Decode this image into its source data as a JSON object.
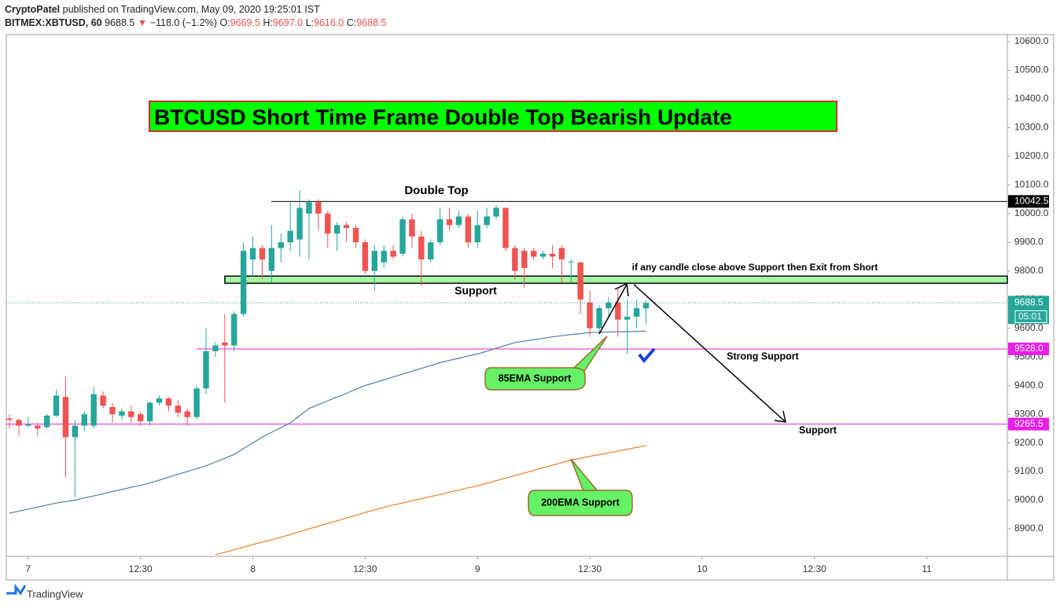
{
  "header": {
    "line1_author": "CryptoPatel",
    "line1_rest": "published on TradingView.com, May 09, 2020 19:25:01 IST",
    "symbol": "BITMEX:XBTUSD, 60",
    "last": "9688.5",
    "arrow": "▼",
    "change": "−118.0 (−1.2%)",
    "o_label": "O:",
    "o": "9669.5",
    "h_label": "H:",
    "h": "9697.0",
    "l_label": "L:",
    "l": "9616.0",
    "c_label": "C:",
    "c": "9688.5"
  },
  "footer": "TradingView",
  "chart_data": {
    "type": "candlestick",
    "up_color": "#26a69a",
    "down_color": "#ef5350",
    "xlim": [
      -0.34,
      106.6
    ],
    "ylim": [
      8804,
      10622
    ],
    "xticks": [
      {
        "value": 2,
        "label": "7"
      },
      {
        "value": 14,
        "label": "12:30"
      },
      {
        "value": 26,
        "label": "8"
      },
      {
        "value": 38,
        "label": "12:30"
      },
      {
        "value": 50,
        "label": "9"
      },
      {
        "value": 62,
        "label": "12:30"
      },
      {
        "value": 74,
        "label": "10"
      },
      {
        "value": 86,
        "label": "12:30"
      },
      {
        "value": 98,
        "label": "11"
      }
    ],
    "yticks": [
      {
        "value": 8900,
        "label": "8900.0"
      },
      {
        "value": 9000,
        "label": "9000.0"
      },
      {
        "value": 9100,
        "label": "9100.0"
      },
      {
        "value": 9200,
        "label": "9200.0"
      },
      {
        "value": 9300,
        "label": "9300.0"
      },
      {
        "value": 9400,
        "label": "9400.0"
      },
      {
        "value": 9500,
        "label": "9500.0"
      },
      {
        "value": 9600,
        "label": "9600.0"
      },
      {
        "value": 9700,
        "label": "9700.0"
      },
      {
        "value": 9800,
        "label": "9800.0"
      },
      {
        "value": 9900,
        "label": "9900.0"
      },
      {
        "value": 10000,
        "label": "10000.0"
      },
      {
        "value": 10100,
        "label": "10100.0"
      },
      {
        "value": 10200,
        "label": "10200.0"
      },
      {
        "value": 10300,
        "label": "10300.0"
      },
      {
        "value": 10400,
        "label": "10400.0"
      },
      {
        "value": 10500,
        "label": "10500.0"
      },
      {
        "value": 10600,
        "label": "10600.0"
      }
    ],
    "candles": [
      {
        "open": 9285,
        "high": 9300,
        "low": 9250,
        "close": 9280
      },
      {
        "open": 9280,
        "high": 9285,
        "low": 9225,
        "close": 9260
      },
      {
        "open": 9260,
        "high": 9290,
        "low": 9255,
        "close": 9265
      },
      {
        "open": 9260,
        "high": 9270,
        "low": 9225,
        "close": 9250
      },
      {
        "open": 9255,
        "high": 9300,
        "low": 9250,
        "close": 9295
      },
      {
        "open": 9295,
        "high": 9385,
        "low": 9290,
        "close": 9365
      },
      {
        "open": 9360,
        "high": 9430,
        "low": 9080,
        "close": 9220
      },
      {
        "open": 9220,
        "high": 9280,
        "low": 9010,
        "close": 9260
      },
      {
        "open": 9260,
        "high": 9310,
        "low": 9240,
        "close": 9300
      },
      {
        "open": 9260,
        "high": 9395,
        "low": 9250,
        "close": 9370
      },
      {
        "open": 9365,
        "high": 9380,
        "low": 9320,
        "close": 9330
      },
      {
        "open": 9325,
        "high": 9340,
        "low": 9270,
        "close": 9300
      },
      {
        "open": 9295,
        "high": 9320,
        "low": 9280,
        "close": 9310
      },
      {
        "open": 9310,
        "high": 9330,
        "low": 9270,
        "close": 9290
      },
      {
        "open": 9300,
        "high": 9310,
        "low": 9260,
        "close": 9275
      },
      {
        "open": 9275,
        "high": 9345,
        "low": 9260,
        "close": 9340
      },
      {
        "open": 9340,
        "high": 9365,
        "low": 9330,
        "close": 9355
      },
      {
        "open": 9355,
        "high": 9360,
        "low": 9310,
        "close": 9330
      },
      {
        "open": 9330,
        "high": 9350,
        "low": 9290,
        "close": 9305
      },
      {
        "open": 9310,
        "high": 9320,
        "low": 9260,
        "close": 9290
      },
      {
        "open": 9290,
        "high": 9400,
        "low": 9280,
        "close": 9390
      },
      {
        "open": 9390,
        "high": 9600,
        "low": 9370,
        "close": 9520
      },
      {
        "open": 9520,
        "high": 9550,
        "low": 9500,
        "close": 9540
      },
      {
        "open": 9550,
        "high": 9650,
        "low": 9340,
        "close": 9540
      },
      {
        "open": 9540,
        "high": 9660,
        "low": 9520,
        "close": 9650
      },
      {
        "open": 9650,
        "high": 9900,
        "low": 9640,
        "close": 9870
      },
      {
        "open": 9840,
        "high": 9920,
        "low": 9780,
        "close": 9880
      },
      {
        "open": 9880,
        "high": 9890,
        "low": 9770,
        "close": 9840
      },
      {
        "open": 9800,
        "high": 9960,
        "low": 9760,
        "close": 9880
      },
      {
        "open": 9880,
        "high": 9930,
        "low": 9830,
        "close": 9900
      },
      {
        "open": 9900,
        "high": 10040,
        "low": 9870,
        "close": 9940
      },
      {
        "open": 9910,
        "high": 10080,
        "low": 9850,
        "close": 10020
      },
      {
        "open": 10000,
        "high": 10050,
        "low": 9840,
        "close": 10040
      },
      {
        "open": 10040,
        "high": 10050,
        "low": 9940,
        "close": 10000
      },
      {
        "open": 10000,
        "high": 10010,
        "low": 9880,
        "close": 9930
      },
      {
        "open": 9930,
        "high": 9970,
        "low": 9870,
        "close": 9960
      },
      {
        "open": 9960,
        "high": 9970,
        "low": 9900,
        "close": 9950
      },
      {
        "open": 9950,
        "high": 9960,
        "low": 9880,
        "close": 9900
      },
      {
        "open": 9900,
        "high": 9910,
        "low": 9790,
        "close": 9800
      },
      {
        "open": 9800,
        "high": 9890,
        "low": 9730,
        "close": 9870
      },
      {
        "open": 9830,
        "high": 9890,
        "low": 9810,
        "close": 9870
      },
      {
        "open": 9870,
        "high": 9890,
        "low": 9840,
        "close": 9850
      },
      {
        "open": 9860,
        "high": 9990,
        "low": 9850,
        "close": 9980
      },
      {
        "open": 9980,
        "high": 10000,
        "low": 9880,
        "close": 9920
      },
      {
        "open": 9920,
        "high": 9940,
        "low": 9750,
        "close": 9840
      },
      {
        "open": 9840,
        "high": 9910,
        "low": 9830,
        "close": 9900
      },
      {
        "open": 9900,
        "high": 10020,
        "low": 9890,
        "close": 9980
      },
      {
        "open": 9980,
        "high": 10020,
        "low": 9940,
        "close": 9960
      },
      {
        "open": 9960,
        "high": 10010,
        "low": 9950,
        "close": 9990
      },
      {
        "open": 9990,
        "high": 10000,
        "low": 9880,
        "close": 9900
      },
      {
        "open": 9900,
        "high": 10010,
        "low": 9880,
        "close": 9960
      },
      {
        "open": 9960,
        "high": 10020,
        "low": 9950,
        "close": 9990
      },
      {
        "open": 9990,
        "high": 10030,
        "low": 9980,
        "close": 10020
      },
      {
        "open": 10020,
        "high": 10020,
        "low": 9870,
        "close": 9880
      },
      {
        "open": 9880,
        "high": 9890,
        "low": 9770,
        "close": 9800
      },
      {
        "open": 9870,
        "high": 9880,
        "low": 9740,
        "close": 9810
      },
      {
        "open": 9870,
        "high": 9880,
        "low": 9840,
        "close": 9850
      },
      {
        "open": 9850,
        "high": 9870,
        "low": 9840,
        "close": 9860
      },
      {
        "open": 9860,
        "high": 9890,
        "low": 9810,
        "close": 9850
      },
      {
        "open": 9880,
        "high": 9890,
        "low": 9760,
        "close": 9840
      },
      {
        "open": 9830,
        "high": 9840,
        "low": 9760,
        "close": 9832
      },
      {
        "open": 9830,
        "high": 9830,
        "low": 9650,
        "close": 9700
      },
      {
        "open": 9690,
        "high": 9730,
        "low": 9570,
        "close": 9600
      },
      {
        "open": 9600,
        "high": 9680,
        "low": 9580,
        "close": 9670
      },
      {
        "open": 9670,
        "high": 9710,
        "low": 9640,
        "close": 9690
      },
      {
        "open": 9690,
        "high": 9740,
        "low": 9570,
        "close": 9630
      },
      {
        "open": 9630,
        "high": 9700,
        "low": 9510,
        "close": 9640
      },
      {
        "open": 9640,
        "high": 9700,
        "low": 9600,
        "close": 9670
      },
      {
        "open": 9669.5,
        "high": 9697.0,
        "low": 9616.0,
        "close": 9688.5
      }
    ],
    "series": [
      {
        "name": "85EMA",
        "color": "#4a7fb0",
        "values": [
          8955,
          8962,
          8969,
          8976,
          8983,
          8990,
          8995,
          9000,
          9008,
          9015,
          9022,
          9030,
          9037,
          9045,
          9052,
          9060,
          9070,
          9080,
          9090,
          9100,
          9110,
          9120,
          9133,
          9146,
          9160,
          9180,
          9200,
          9220,
          9237,
          9253,
          9270,
          9295,
          9320,
          9333,
          9347,
          9360,
          9373,
          9387,
          9400,
          9410,
          9420,
          9430,
          9440,
          9450,
          9460,
          9470,
          9480,
          9488,
          9495,
          9503,
          9510,
          9520,
          9530,
          9540,
          9550,
          9555,
          9560,
          9565,
          9570,
          9574,
          9578,
          9581,
          9585,
          9586,
          9587,
          9588,
          9588,
          9589,
          9590
        ]
      },
      {
        "name": "200EMA",
        "color": "#f57c1f",
        "values": [
          null,
          null,
          null,
          null,
          null,
          null,
          null,
          null,
          null,
          null,
          null,
          null,
          null,
          null,
          null,
          null,
          null,
          null,
          null,
          null,
          null,
          null,
          8810,
          8818,
          8827,
          8836,
          8845,
          8854,
          8862,
          8871,
          8880,
          8890,
          8900,
          8909,
          8919,
          8928,
          8938,
          8947,
          8957,
          8966,
          8975,
          8983,
          8990,
          8998,
          9005,
          9013,
          9020,
          9028,
          9035,
          9043,
          9050,
          9059,
          9068,
          9077,
          9086,
          9095,
          9104,
          9113,
          9122,
          9131,
          9140,
          9146,
          9153,
          9159,
          9165,
          9171,
          9178,
          9184,
          9190
        ]
      }
    ],
    "levels": [
      {
        "value": 10042.5,
        "label": "10042.5",
        "color": "#000000"
      },
      {
        "value": 9528.0,
        "label": "9528.0",
        "color": "#e91ee9"
      },
      {
        "value": 9265.5,
        "label": "9265.5",
        "color": "#e91ee9"
      }
    ],
    "last_price": {
      "value": 9688.5,
      "label": "9688.5",
      "countdown": "05:01",
      "color": "#26a69a"
    },
    "support_zone": [
      9757,
      9782
    ],
    "title": "BTCUSD Short Time Frame Double Top Bearish Update",
    "annotations": [
      "Double Top",
      "Support",
      "if any candle close above Support then Exit from Short",
      "Strong Support",
      "Support",
      "85EMA Support",
      "200EMA Support"
    ]
  }
}
